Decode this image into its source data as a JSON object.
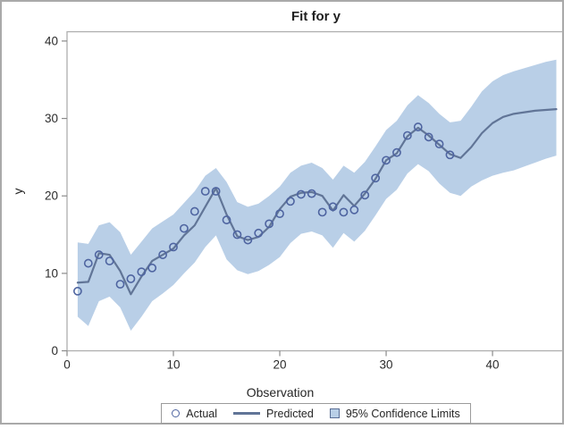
{
  "figure": {
    "title": "Fit for y"
  },
  "axes": {
    "x": {
      "label": "Observation",
      "ticks": [
        0,
        10,
        20,
        30,
        40
      ]
    },
    "y": {
      "label": "y",
      "ticks": [
        0,
        10,
        20,
        30,
        40
      ]
    }
  },
  "legend": {
    "items": [
      {
        "label": "Actual",
        "marker": "open-circle"
      },
      {
        "label": "Predicted",
        "marker": "line"
      },
      {
        "label": "95% Confidence Limits",
        "marker": "filled-band-square"
      }
    ]
  },
  "colors": {
    "band_fill": "#b9cfe7",
    "predicted_line": "#617597",
    "actual_marker": "#4e64a0",
    "frame": "#aeaeae",
    "tick": "#8a8a8a",
    "text": "#2b2b2b"
  },
  "chart_data": {
    "type": "line",
    "title": "Fit for y",
    "xlabel": "Observation",
    "ylabel": "y",
    "xlim": [
      0,
      46.8
    ],
    "ylim": [
      0,
      41.2
    ],
    "x_ticks": [
      0,
      10,
      20,
      30,
      40
    ],
    "y_ticks": [
      0,
      10,
      20,
      30,
      40
    ],
    "grid": false,
    "legend_position": "bottom",
    "series": [
      {
        "name": "Actual",
        "type": "scatter",
        "x": [
          1,
          2,
          3,
          4,
          5,
          6,
          7,
          8,
          9,
          10,
          11,
          12,
          13,
          14,
          15,
          16,
          17,
          18,
          19,
          20,
          21,
          22,
          23,
          24,
          25,
          26,
          27,
          28,
          29,
          30,
          31,
          32,
          33,
          34,
          35,
          36
        ],
        "values": [
          7.7,
          11.3,
          12.4,
          11.6,
          8.6,
          9.3,
          10.2,
          10.7,
          12.4,
          13.4,
          15.8,
          18.0,
          20.6,
          20.6,
          16.9,
          15.0,
          14.3,
          15.2,
          16.4,
          17.7,
          19.3,
          20.2,
          20.3,
          17.9,
          18.6,
          17.9,
          18.2,
          20.1,
          22.3,
          24.6,
          25.6,
          27.8,
          28.9,
          27.6,
          26.7,
          25.3
        ]
      },
      {
        "name": "Predicted",
        "type": "line",
        "x": [
          1,
          2,
          3,
          4,
          5,
          6,
          7,
          8,
          9,
          10,
          11,
          12,
          13,
          14,
          15,
          16,
          17,
          18,
          19,
          20,
          21,
          22,
          23,
          24,
          25,
          26,
          27,
          28,
          29,
          30,
          31,
          32,
          33,
          34,
          35,
          36,
          37,
          38,
          39,
          40,
          41,
          42,
          43,
          44,
          45,
          46
        ],
        "values": [
          8.8,
          8.9,
          12.6,
          12.4,
          10.3,
          7.3,
          9.6,
          11.6,
          12.4,
          13.2,
          14.9,
          16.2,
          18.6,
          21.0,
          17.6,
          14.8,
          14.3,
          14.7,
          16.0,
          18.3,
          19.9,
          20.4,
          20.5,
          20.0,
          18.1,
          20.1,
          18.7,
          20.3,
          22.2,
          24.6,
          25.5,
          27.7,
          28.8,
          27.8,
          26.6,
          25.4,
          24.9,
          26.3,
          28.1,
          29.4,
          30.2,
          30.6,
          30.8,
          31.0,
          31.1,
          31.2
        ]
      },
      {
        "name": "95% Confidence Limits",
        "type": "band",
        "x": [
          1,
          2,
          3,
          4,
          5,
          6,
          7,
          8,
          9,
          10,
          11,
          12,
          13,
          14,
          15,
          16,
          17,
          18,
          19,
          20,
          21,
          22,
          23,
          24,
          25,
          26,
          27,
          28,
          29,
          30,
          31,
          32,
          33,
          34,
          35,
          36,
          37,
          38,
          39,
          40,
          41,
          42,
          43,
          44,
          45,
          46
        ],
        "upper": [
          14.0,
          13.8,
          16.2,
          16.6,
          15.3,
          12.4,
          14.1,
          15.8,
          16.7,
          17.6,
          19.1,
          20.6,
          22.6,
          23.6,
          21.8,
          19.2,
          18.6,
          19.0,
          20.0,
          21.2,
          23.0,
          23.9,
          24.3,
          23.6,
          22.1,
          23.9,
          23.0,
          24.4,
          26.4,
          28.5,
          29.7,
          31.7,
          33.0,
          32.0,
          30.6,
          29.5,
          29.7,
          31.5,
          33.5,
          34.8,
          35.6,
          36.1,
          36.5,
          36.9,
          37.3,
          37.6
        ],
        "lower": [
          4.4,
          3.2,
          6.4,
          7.0,
          5.6,
          2.6,
          4.4,
          6.4,
          7.4,
          8.5,
          10.0,
          11.4,
          13.4,
          14.9,
          11.8,
          10.4,
          9.9,
          10.3,
          11.1,
          12.1,
          13.9,
          15.1,
          15.4,
          14.9,
          13.3,
          15.2,
          14.1,
          15.5,
          17.5,
          19.6,
          20.8,
          22.9,
          24.1,
          23.2,
          21.6,
          20.4,
          20.0,
          21.2,
          22.0,
          22.6,
          23.0,
          23.3,
          23.8,
          24.3,
          24.8,
          25.2
        ]
      }
    ]
  }
}
